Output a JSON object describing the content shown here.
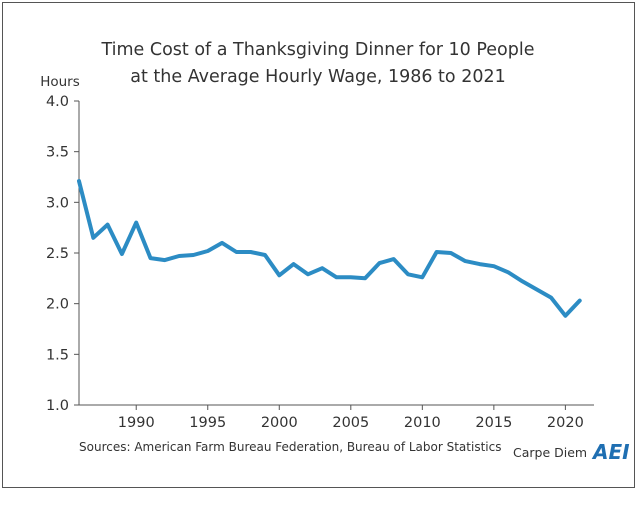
{
  "chart_data": {
    "type": "line",
    "title": "Time Cost of a Thanksgiving Dinner for 10 People",
    "subtitle": "at the Average Hourly Wage, 1986 to 2021",
    "xlabel": "",
    "ylabel": "Hours",
    "ylim": [
      1.0,
      4.0
    ],
    "xlim": [
      1986,
      2022
    ],
    "yticks": [
      "1.0",
      "1.5",
      "2.0",
      "2.5",
      "3.0",
      "3.5",
      "4.0"
    ],
    "xticks": [
      "1990",
      "1995",
      "2000",
      "2005",
      "2010",
      "2015",
      "2020"
    ],
    "grid": false,
    "series_color": "#2C8CC4",
    "x": [
      1986,
      1987,
      1988,
      1989,
      1990,
      1991,
      1992,
      1993,
      1994,
      1995,
      1996,
      1997,
      1998,
      1999,
      2000,
      2001,
      2002,
      2003,
      2004,
      2005,
      2006,
      2007,
      2008,
      2009,
      2010,
      2011,
      2012,
      2013,
      2014,
      2015,
      2016,
      2017,
      2018,
      2019,
      2020,
      2021
    ],
    "y": [
      3.21,
      2.65,
      2.78,
      2.49,
      2.8,
      2.45,
      2.43,
      2.47,
      2.48,
      2.52,
      2.6,
      2.51,
      2.51,
      2.48,
      2.28,
      2.39,
      2.29,
      2.35,
      2.26,
      2.26,
      2.25,
      2.4,
      2.44,
      2.29,
      2.26,
      2.51,
      2.5,
      2.42,
      2.39,
      2.37,
      2.31,
      2.22,
      2.14,
      2.06,
      1.88,
      2.03
    ]
  },
  "footer": {
    "source": "Sources: American Farm Bureau Federation, Bureau of Labor Statistics",
    "brand_text": "Carpe Diem",
    "brand_logo": "AEI",
    "logo_color": "#1F6FB2"
  }
}
